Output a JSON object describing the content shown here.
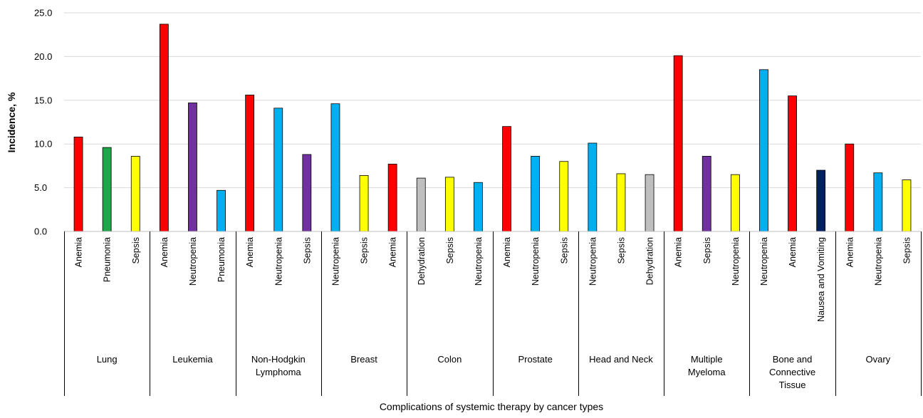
{
  "chart_data": {
    "type": "bar",
    "title": "",
    "xlabel": "Complications of systemic therapy by cancer types",
    "ylabel": "Incidence, %",
    "ylim": [
      0,
      25
    ],
    "yticks": [
      "0.0",
      "5.0",
      "10.0",
      "15.0",
      "20.0",
      "25.0"
    ],
    "grid": true,
    "legend": "none",
    "groups": [
      {
        "name": "Lung",
        "bars": [
          {
            "label": "Anemia",
            "value": 10.8,
            "color": "#ff0000"
          },
          {
            "label": "Pneumonia",
            "value": 9.6,
            "color": "#1fa64a"
          },
          {
            "label": "Sepsis",
            "value": 8.6,
            "color": "#ffff00"
          }
        ]
      },
      {
        "name": "Leukemia",
        "bars": [
          {
            "label": "Anemia",
            "value": 23.7,
            "color": "#ff0000"
          },
          {
            "label": "Neutropenia",
            "value": 14.7,
            "color": "#7030a0"
          },
          {
            "label": "Pneumonia",
            "value": 4.7,
            "color": "#00b0f0"
          }
        ]
      },
      {
        "name": "Non-Hodgkin Lymphoma",
        "bars": [
          {
            "label": "Anemia",
            "value": 15.6,
            "color": "#ff0000"
          },
          {
            "label": "Neutropenia",
            "value": 14.1,
            "color": "#00b0f0"
          },
          {
            "label": "Sepsis",
            "value": 8.8,
            "color": "#7030a0"
          }
        ]
      },
      {
        "name": "Breast",
        "bars": [
          {
            "label": "Neutropenia",
            "value": 14.6,
            "color": "#00b0f0"
          },
          {
            "label": "Sepsis",
            "value": 6.4,
            "color": "#ffff00"
          },
          {
            "label": "Anemia",
            "value": 7.7,
            "color": "#ff0000"
          }
        ]
      },
      {
        "name": "Colon",
        "bars": [
          {
            "label": "Dehydration",
            "value": 6.1,
            "color": "#bfbfbf"
          },
          {
            "label": "Sepsis",
            "value": 6.2,
            "color": "#ffff00"
          },
          {
            "label": "Neutropenia",
            "value": 5.6,
            "color": "#00b0f0"
          }
        ]
      },
      {
        "name": "Prostate",
        "bars": [
          {
            "label": "Anemia",
            "value": 12.0,
            "color": "#ff0000"
          },
          {
            "label": "Neutropenia",
            "value": 8.6,
            "color": "#00b0f0"
          },
          {
            "label": "Sepsis",
            "value": 8.0,
            "color": "#ffff00"
          }
        ]
      },
      {
        "name": "Head and Neck",
        "bars": [
          {
            "label": "Neutropenia",
            "value": 10.1,
            "color": "#00b0f0"
          },
          {
            "label": "Sepsis",
            "value": 6.6,
            "color": "#ffff00"
          },
          {
            "label": "Dehydration",
            "value": 6.5,
            "color": "#bfbfbf"
          }
        ]
      },
      {
        "name": "Multiple Myeloma",
        "bars": [
          {
            "label": "Anemia",
            "value": 20.1,
            "color": "#ff0000"
          },
          {
            "label": "Sepsis",
            "value": 8.6,
            "color": "#7030a0"
          },
          {
            "label": "Neutropenia",
            "value": 6.5,
            "color": "#ffff00"
          }
        ]
      },
      {
        "name": "Bone and Connective Tissue",
        "bars": [
          {
            "label": "Neutropenia",
            "value": 18.5,
            "color": "#00b0f0"
          },
          {
            "label": "Anemia",
            "value": 15.5,
            "color": "#ff0000"
          },
          {
            "label": "Nausea and Vomiting",
            "value": 7.0,
            "color": "#002060"
          }
        ]
      },
      {
        "name": "Ovary",
        "bars": [
          {
            "label": "Anemia",
            "value": 10.0,
            "color": "#ff0000"
          },
          {
            "label": "Neutropenia",
            "value": 6.7,
            "color": "#00b0f0"
          },
          {
            "label": "Sepsis",
            "value": 5.9,
            "color": "#ffff00"
          }
        ]
      }
    ]
  }
}
